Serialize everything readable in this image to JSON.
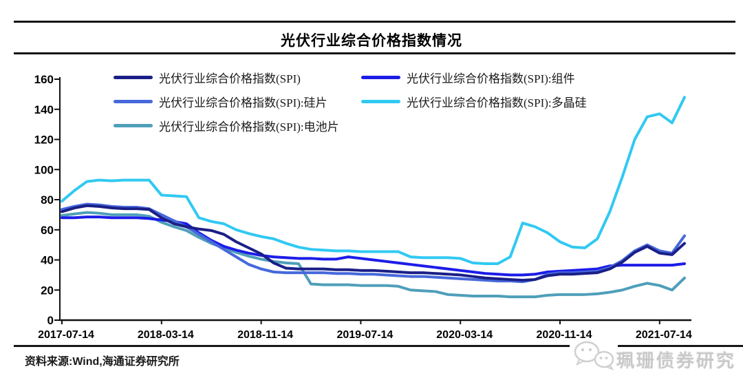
{
  "title": "光伏行业综合价格指数情况",
  "source_note": "资料来源:Wind,海通证券研究所",
  "watermark": {
    "icon": "wechat-logo",
    "text": "珮珊债券研究"
  },
  "colors": {
    "separator_line": "#161616",
    "axis": "#111111",
    "watermark_gray": "#c9c9c9"
  },
  "chart_data": {
    "type": "line",
    "title": "光伏行业综合价格指数情况",
    "grid": false,
    "legend_position": "top",
    "ylim": [
      0,
      160
    ],
    "y_ticks": [
      0,
      20,
      40,
      60,
      80,
      100,
      120,
      140,
      160
    ],
    "x_tick_labels": [
      "2017-07-14",
      "2018-03-14",
      "2018-11-14",
      "2019-07-14",
      "2020-03-14",
      "2020-11-14",
      "2021-07-14"
    ],
    "x_tick_month_index": [
      0,
      8,
      16,
      24,
      32,
      40,
      48
    ],
    "x_start": "2017-07",
    "x_interval": "month",
    "series": [
      {
        "name": "光伏行业综合价格指数(SPI)",
        "color": "#1a1f87",
        "values": [
          72,
          74.5,
          76,
          75.5,
          74.5,
          74,
          74,
          73.5,
          68,
          64,
          62,
          60.5,
          59.5,
          57,
          52,
          48,
          44,
          38,
          34.5,
          34,
          34,
          34,
          33.5,
          33.5,
          33,
          33,
          32.5,
          32,
          31.5,
          31.5,
          31,
          30.5,
          30,
          29,
          28,
          27.5,
          27,
          26.5,
          27,
          29.5,
          30.5,
          30.5,
          31,
          31.5,
          34,
          38.5,
          45,
          49,
          44.5,
          43.5,
          51
        ]
      },
      {
        "name": "光伏行业综合价格指数(SPI):组件",
        "color": "#1c1ce8",
        "values": [
          68,
          68,
          68.5,
          68.5,
          68,
          68,
          68,
          67.5,
          66.5,
          65.5,
          64,
          58,
          53,
          49,
          46.5,
          44.5,
          43,
          42,
          41.5,
          41,
          41,
          40.5,
          40.5,
          42,
          41,
          40,
          39,
          38,
          37,
          36,
          35,
          34,
          33,
          32,
          31,
          30.5,
          30,
          30,
          30.5,
          32,
          32.5,
          33,
          33.5,
          34,
          36,
          36.5,
          36.5,
          36.5,
          36.5,
          36.5,
          37.5
        ]
      },
      {
        "name": "光伏行业综合价格指数(SPI):硅片",
        "color": "#4668db",
        "values": [
          73.5,
          75.5,
          77,
          76.5,
          75.5,
          75,
          75,
          74,
          70,
          66,
          62,
          57,
          52,
          47,
          42,
          37,
          34,
          32,
          31.5,
          31.5,
          31.5,
          31.5,
          31,
          31,
          30.5,
          30.5,
          30,
          29.5,
          29,
          29,
          28.5,
          28,
          27.5,
          27,
          26.5,
          26,
          26,
          25.5,
          27,
          30.5,
          31.5,
          31.5,
          32,
          32.5,
          35,
          39.5,
          46,
          50,
          46,
          44.5,
          56
        ]
      },
      {
        "name": "光伏行业综合价格指数(SPI):多晶硅",
        "color": "#31c9f2",
        "values": [
          79,
          86,
          92,
          93,
          92.5,
          93,
          93,
          93,
          83,
          82.5,
          82,
          68,
          65.5,
          64,
          60,
          57.5,
          55.5,
          54,
          51,
          48.5,
          47,
          46.5,
          46,
          46,
          45.5,
          45.5,
          45.5,
          45.5,
          42,
          41.5,
          41.5,
          41.5,
          41,
          38,
          37.5,
          37.5,
          42,
          64.5,
          62,
          58,
          52,
          48.5,
          48,
          54,
          72,
          95,
          120,
          135,
          137,
          131,
          148
        ]
      },
      {
        "name": "光伏行业综合价格指数(SPI):电池片",
        "color": "#4f9fba",
        "values": [
          69.5,
          70.5,
          71.5,
          71,
          70,
          70,
          70,
          69,
          65,
          62,
          59.5,
          55,
          51,
          48,
          45,
          42.5,
          40.5,
          39,
          38,
          37.5,
          24,
          23.5,
          23.5,
          23.5,
          23,
          23,
          23,
          22.5,
          20,
          19.5,
          19,
          17,
          16.5,
          16,
          16,
          16,
          15.5,
          15.5,
          15.5,
          16.5,
          17,
          17,
          17,
          17.5,
          18.5,
          20,
          22.5,
          24.5,
          23,
          20,
          28
        ]
      }
    ]
  }
}
